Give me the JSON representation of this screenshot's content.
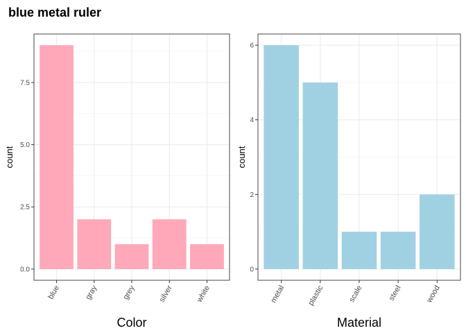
{
  "title": "blue metal ruler",
  "chart_data": [
    {
      "type": "bar",
      "title": "",
      "xlabel": "Color",
      "ylabel": "count",
      "categories": [
        "blue",
        "gray",
        "grey",
        "silver",
        "white"
      ],
      "values": [
        9,
        2,
        1,
        2,
        1
      ],
      "yticks": [
        0,
        2.5,
        5,
        7.5
      ],
      "ytick_labels": [
        "0.0",
        "2.5",
        "5.0",
        "7.5"
      ],
      "ylim": [
        -0.45,
        9.45
      ],
      "grid": true,
      "bar_color": "#ffa8b9",
      "theme": "bw"
    },
    {
      "type": "bar",
      "title": "",
      "xlabel": "Material",
      "ylabel": "count",
      "categories": [
        "metal",
        "plastic",
        "scale",
        "steel",
        "wood"
      ],
      "values": [
        6,
        5,
        1,
        1,
        2
      ],
      "yticks": [
        0,
        2,
        4,
        6
      ],
      "ytick_labels": [
        "0",
        "2",
        "4",
        "6"
      ],
      "ylim": [
        -0.3,
        6.3
      ],
      "grid": true,
      "bar_color": "#a0d1e2",
      "theme": "bw"
    }
  ]
}
